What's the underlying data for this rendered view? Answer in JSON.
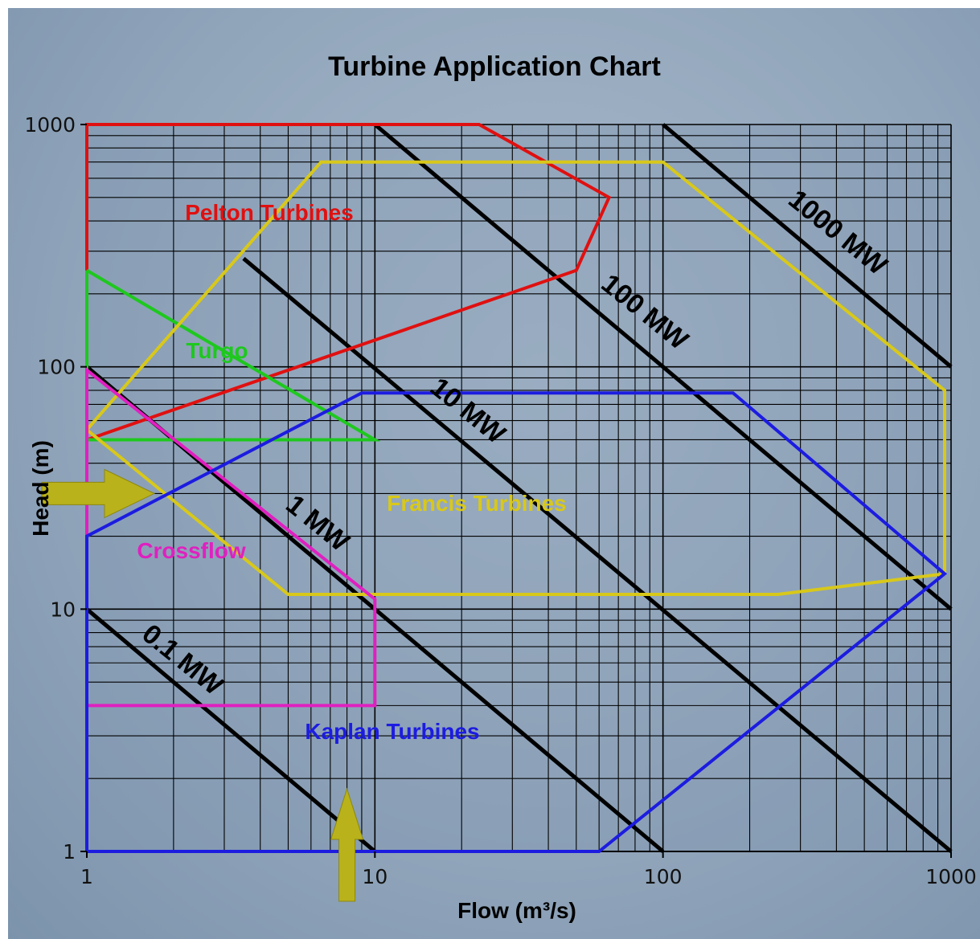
{
  "chart_data": {
    "type": "line",
    "title": "Turbine Application Chart",
    "xlabel": "Flow (m³/s)",
    "ylabel": "Head (m)",
    "x_scale": "log",
    "y_scale": "log",
    "xlim": [
      1,
      1000
    ],
    "ylim": [
      1,
      1000
    ],
    "x_ticks": [
      "1",
      "10",
      "100",
      "1000"
    ],
    "y_ticks": [
      "1",
      "10",
      "100",
      "1000"
    ],
    "grid": true,
    "power_lines": [
      {
        "label": "0.1 MW",
        "points": [
          [
            1,
            10
          ],
          [
            10,
            1
          ]
        ]
      },
      {
        "label": "1 MW",
        "points": [
          [
            1,
            100
          ],
          [
            100,
            1
          ]
        ]
      },
      {
        "label": "10 MW",
        "points": [
          [
            3.5,
            280
          ],
          [
            1000,
            1
          ]
        ]
      },
      {
        "label": "100 MW",
        "points": [
          [
            10,
            1000
          ],
          [
            1000,
            10
          ]
        ]
      },
      {
        "label": "1000 MW",
        "points": [
          [
            100,
            1000
          ],
          [
            1000,
            100
          ]
        ]
      }
    ],
    "regions": [
      {
        "name": "Pelton Turbines",
        "color": "#e01010",
        "points": [
          [
            1,
            50
          ],
          [
            1,
            1000
          ],
          [
            23,
            1000
          ],
          [
            65,
            500
          ],
          [
            50,
            250
          ],
          [
            1,
            50
          ]
        ]
      },
      {
        "name": "Turgo",
        "color": "#1ec81e",
        "points": [
          [
            1,
            250
          ],
          [
            1,
            50
          ],
          [
            10,
            50
          ],
          [
            1,
            250
          ]
        ]
      },
      {
        "name": "Francis Turbines",
        "color": "#d8c81a",
        "points": [
          [
            1,
            55
          ],
          [
            6.5,
            700
          ],
          [
            100,
            700
          ],
          [
            950,
            80
          ],
          [
            950,
            14
          ],
          [
            250,
            11.5
          ],
          [
            5,
            11.5
          ],
          [
            1,
            55
          ]
        ]
      },
      {
        "name": "Crossflow",
        "color": "#e020c0",
        "points": [
          [
            1,
            4
          ],
          [
            1,
            97
          ],
          [
            10,
            11
          ],
          [
            10,
            4
          ],
          [
            1,
            4
          ]
        ]
      },
      {
        "name": "Kaplan Turbines",
        "color": "#1c1ce0",
        "points": [
          [
            1,
            1
          ],
          [
            1,
            20
          ],
          [
            9,
            78
          ],
          [
            175,
            78
          ],
          [
            950,
            14
          ],
          [
            60,
            1
          ],
          [
            1,
            1
          ]
        ]
      }
    ],
    "annotations": [
      "flow arrow at 8 m³/s",
      "head arrow at 30 m"
    ]
  }
}
